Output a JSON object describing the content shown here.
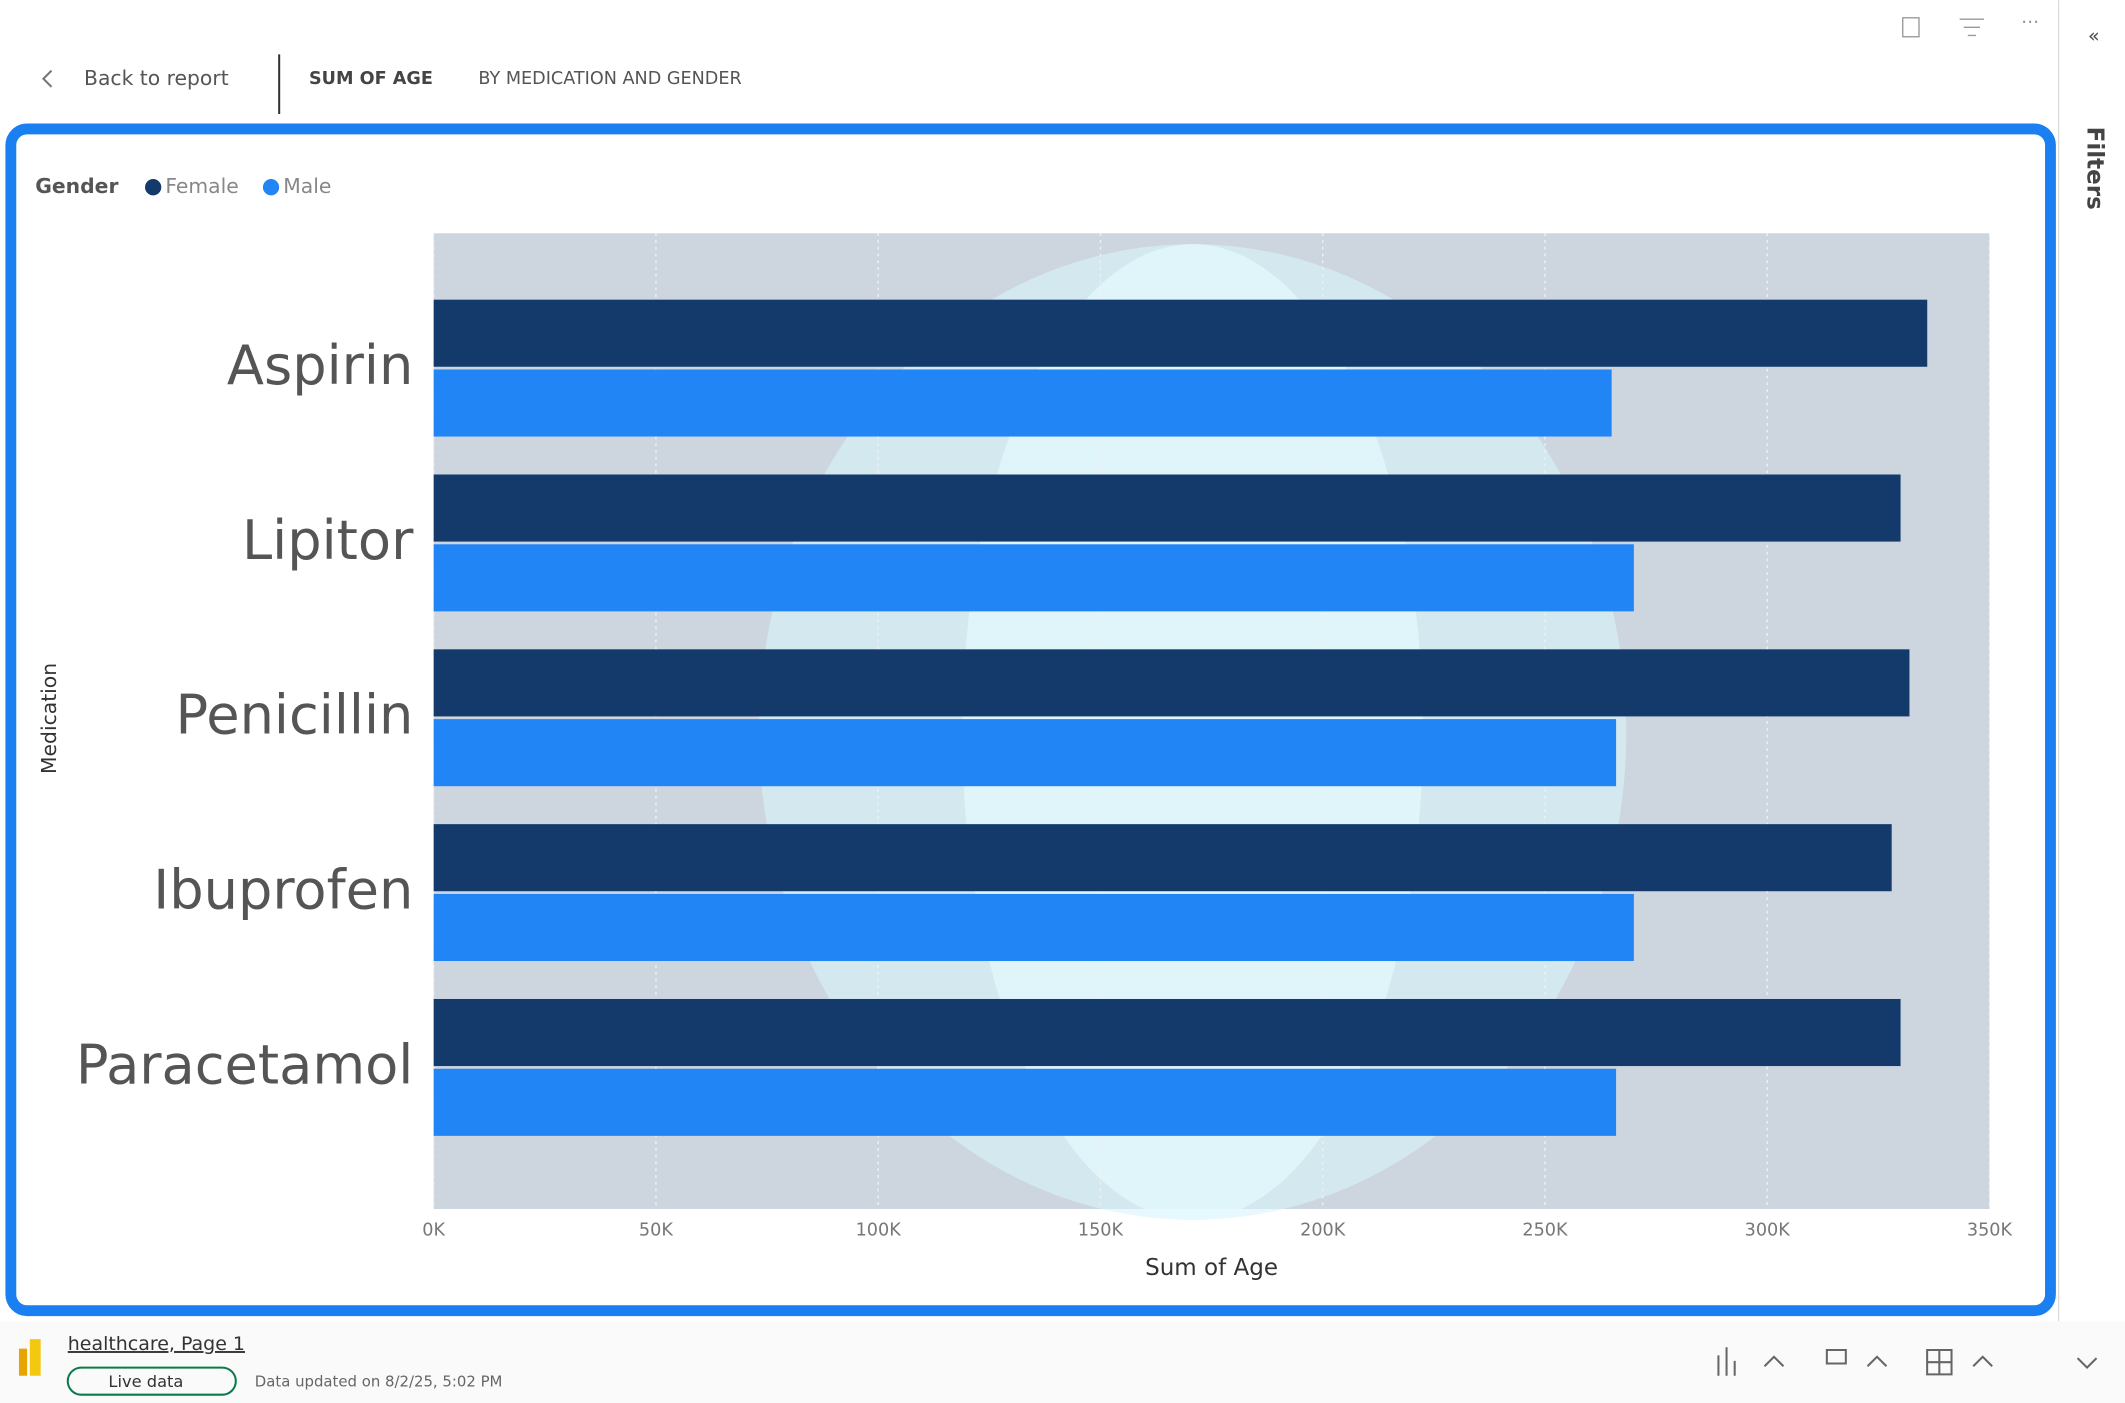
{
  "header": {
    "back": "Back to report",
    "title": "SUM OF AGE",
    "subtitle": "BY MEDICATION AND GENDER"
  },
  "sidebar": {
    "label": "Filters"
  },
  "chart_data": {
    "type": "hbar",
    "legend_title": "Gender",
    "y_label": "Medication",
    "x_label": "Sum of Age",
    "categories": [
      "Aspirin",
      "Lipitor",
      "Penicillin",
      "Ibuprofen",
      "Paracetamol"
    ],
    "series": [
      {
        "name": "Female",
        "color": "#133a6a",
        "values": [
          336000,
          330000,
          332000,
          328000,
          330000
        ]
      },
      {
        "name": "Male",
        "color": "#2185f5",
        "values": [
          265000,
          270000,
          266000,
          270000,
          266000
        ]
      }
    ],
    "xlim": [
      0,
      350000
    ],
    "xticks": [
      {
        "value": 0,
        "label": "0K"
      },
      {
        "value": 50000,
        "label": "50K"
      },
      {
        "value": 100000,
        "label": "100K"
      },
      {
        "value": 150000,
        "label": "150K"
      },
      {
        "value": 200000,
        "label": "200K"
      },
      {
        "value": 250000,
        "label": "250K"
      },
      {
        "value": 300000,
        "label": "300K"
      },
      {
        "value": 350000,
        "label": "350K"
      }
    ],
    "grid": true
  },
  "footer": {
    "report": "healthcare, Page 1",
    "live": "Live data",
    "updated": "Data updated on 8/2/25, 5:02 PM"
  }
}
